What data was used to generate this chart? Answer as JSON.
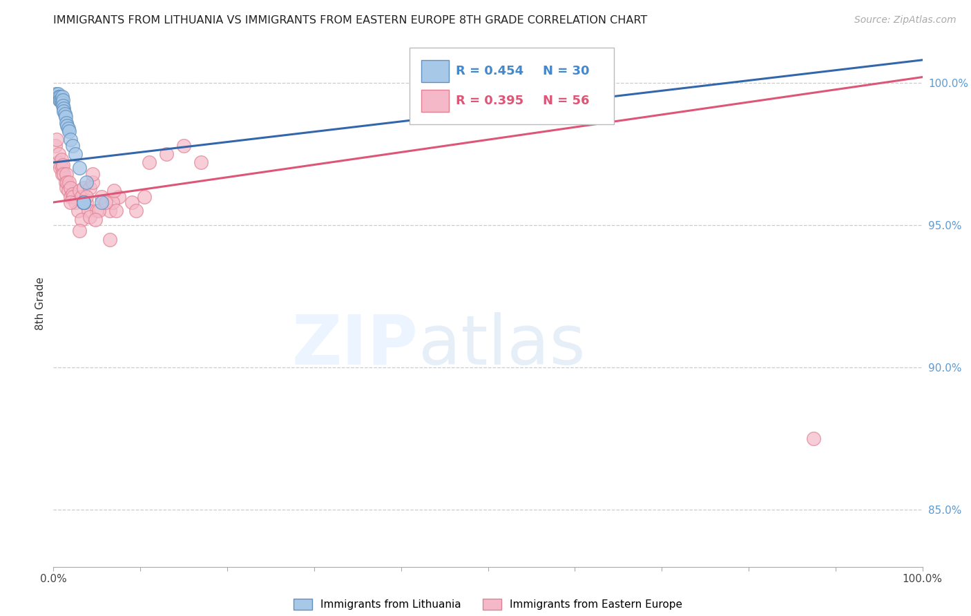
{
  "title": "IMMIGRANTS FROM LITHUANIA VS IMMIGRANTS FROM EASTERN EUROPE 8TH GRADE CORRELATION CHART",
  "source": "Source: ZipAtlas.com",
  "ylabel": "8th Grade",
  "y_tick_labels": [
    "85.0%",
    "90.0%",
    "95.0%",
    "100.0%"
  ],
  "y_tick_values": [
    85.0,
    90.0,
    95.0,
    100.0
  ],
  "legend_blue_r": "R = 0.454",
  "legend_blue_n": "N = 30",
  "legend_pink_r": "R = 0.395",
  "legend_pink_n": "N = 56",
  "legend_label_blue": "Immigrants from Lithuania",
  "legend_label_pink": "Immigrants from Eastern Europe",
  "blue_color": "#a8c8e8",
  "pink_color": "#f4b8c8",
  "blue_edge_color": "#6090c0",
  "pink_edge_color": "#e08090",
  "blue_line_color": "#3366aa",
  "pink_line_color": "#dd5577",
  "blue_r_color": "#4488cc",
  "pink_r_color": "#dd5577",
  "blue_x": [
    0.3,
    0.5,
    0.6,
    0.7,
    0.8,
    0.8,
    0.9,
    1.0,
    1.0,
    1.1,
    1.1,
    1.2,
    1.2,
    1.3,
    1.4,
    1.5,
    1.6,
    1.7,
    1.8,
    2.0,
    2.2,
    2.5,
    3.0,
    3.8,
    5.5,
    3.5,
    3.5,
    3.5,
    3.5,
    3.5
  ],
  "blue_y": [
    99.6,
    99.6,
    99.5,
    99.4,
    99.5,
    99.4,
    99.4,
    99.5,
    99.3,
    99.4,
    99.2,
    99.1,
    99.0,
    98.9,
    98.8,
    98.6,
    98.5,
    98.4,
    98.3,
    98.0,
    97.8,
    97.5,
    97.0,
    96.5,
    95.8,
    95.8,
    95.8,
    95.8,
    95.8,
    95.8
  ],
  "pink_x": [
    0.2,
    0.4,
    0.5,
    0.6,
    0.8,
    0.9,
    1.0,
    1.0,
    1.1,
    1.2,
    1.4,
    1.5,
    1.5,
    1.6,
    1.7,
    1.8,
    2.0,
    2.0,
    2.2,
    2.3,
    2.5,
    2.8,
    3.0,
    3.2,
    3.5,
    3.5,
    3.8,
    4.0,
    4.2,
    4.5,
    5.0,
    5.5,
    6.5,
    7.5,
    9.0,
    11.0,
    13.0,
    15.0,
    17.0,
    6.5,
    6.8,
    7.2,
    9.5,
    10.5,
    3.2,
    3.8,
    4.2,
    5.2,
    6.0,
    7.0,
    3.5,
    4.8,
    3.0,
    4.5,
    2.0,
    87.5
  ],
  "pink_y": [
    97.8,
    98.0,
    97.2,
    97.5,
    97.0,
    97.3,
    97.0,
    96.8,
    97.1,
    96.8,
    96.5,
    96.8,
    96.3,
    96.5,
    96.2,
    96.5,
    96.3,
    96.0,
    96.1,
    96.0,
    95.8,
    95.5,
    96.2,
    96.0,
    95.8,
    96.3,
    95.8,
    95.5,
    96.3,
    96.5,
    95.5,
    96.0,
    95.5,
    96.0,
    95.8,
    97.2,
    97.5,
    97.8,
    97.2,
    94.5,
    95.8,
    95.5,
    95.5,
    96.0,
    95.2,
    96.0,
    95.3,
    95.5,
    95.8,
    96.2,
    95.8,
    95.2,
    94.8,
    96.8,
    95.8,
    87.5
  ],
  "xlim": [
    0,
    100
  ],
  "ylim": [
    83.0,
    101.5
  ],
  "watermark_zip": "ZIP",
  "watermark_atlas": "atlas",
  "background_color": "#ffffff",
  "grid_color": "#cccccc",
  "blue_trend_x": [
    0,
    100
  ],
  "blue_trend_y": [
    97.2,
    100.8
  ],
  "pink_trend_x": [
    0,
    100
  ],
  "pink_trend_y": [
    95.8,
    100.2
  ]
}
